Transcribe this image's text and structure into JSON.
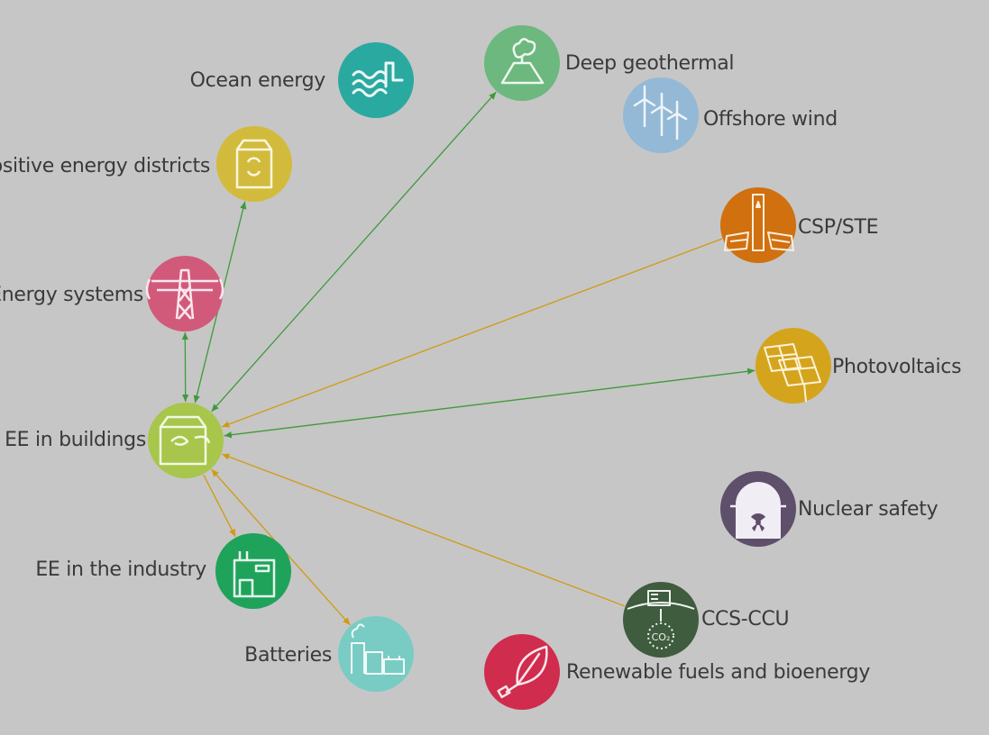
{
  "nodes": {
    "ocean": {
      "label": "Ocean energy",
      "color": "#2aa9a0",
      "icon": "wave-icon"
    },
    "geothermal": {
      "label": "Deep geothermal",
      "color": "#6cb87e",
      "icon": "volcano-icon"
    },
    "offshore_wind": {
      "label": "Offshore wind",
      "color": "#93b9d6",
      "icon": "wind-turbine-icon"
    },
    "positive_districts": {
      "label": "Positive energy districts",
      "color": "#d2bb3c",
      "icon": "house-recycle-icon"
    },
    "csp": {
      "label": "CSP/STE",
      "color": "#d0700e",
      "icon": "solar-tower-icon"
    },
    "energy_systems": {
      "label": "Energy systems",
      "color": "#d15a7b",
      "icon": "pylon-icon"
    },
    "photovoltaics": {
      "label": "Photovoltaics",
      "color": "#d4a41d",
      "icon": "solar-panel-icon"
    },
    "ee_buildings": {
      "label": "EE in buildings",
      "color": "#a7c64b",
      "icon": "building-efficiency-icon"
    },
    "nuclear": {
      "label": "Nuclear safety",
      "color": "#5e4f6b",
      "icon": "nuclear-reactor-icon"
    },
    "ee_industry": {
      "label": "EE in the industry",
      "color": "#1fa35a",
      "icon": "factory-icon"
    },
    "ccs": {
      "label": "CCS-CCU",
      "color": "#3f5c3e",
      "icon": "co2-capture-icon"
    },
    "batteries": {
      "label": "Batteries",
      "color": "#79ccc3",
      "icon": "battery-plant-icon"
    },
    "renewable_fuels": {
      "label": "Renewable fuels and bioenergy",
      "color": "#cf2c4e",
      "icon": "leaf-plug-icon"
    }
  },
  "edge_colors": {
    "green": "#3f9a3a",
    "orange": "#d19a10"
  },
  "edges": [
    {
      "from": "ee_buildings",
      "to": "geothermal",
      "color": "green",
      "bidirectional": true
    },
    {
      "from": "ee_buildings",
      "to": "positive_districts",
      "color": "green",
      "bidirectional": true
    },
    {
      "from": "ee_buildings",
      "to": "energy_systems",
      "color": "green",
      "bidirectional": true
    },
    {
      "from": "ee_buildings",
      "to": "photovoltaics",
      "color": "green",
      "bidirectional": true
    },
    {
      "from": "csp",
      "to": "ee_buildings",
      "color": "orange",
      "bidirectional": false
    },
    {
      "from": "ccs",
      "to": "ee_buildings",
      "color": "orange",
      "bidirectional": false
    },
    {
      "from": "ee_buildings",
      "to": "ee_industry",
      "color": "orange",
      "bidirectional": false
    },
    {
      "from": "ee_buildings",
      "to": "batteries",
      "color": "orange",
      "bidirectional": true
    }
  ]
}
